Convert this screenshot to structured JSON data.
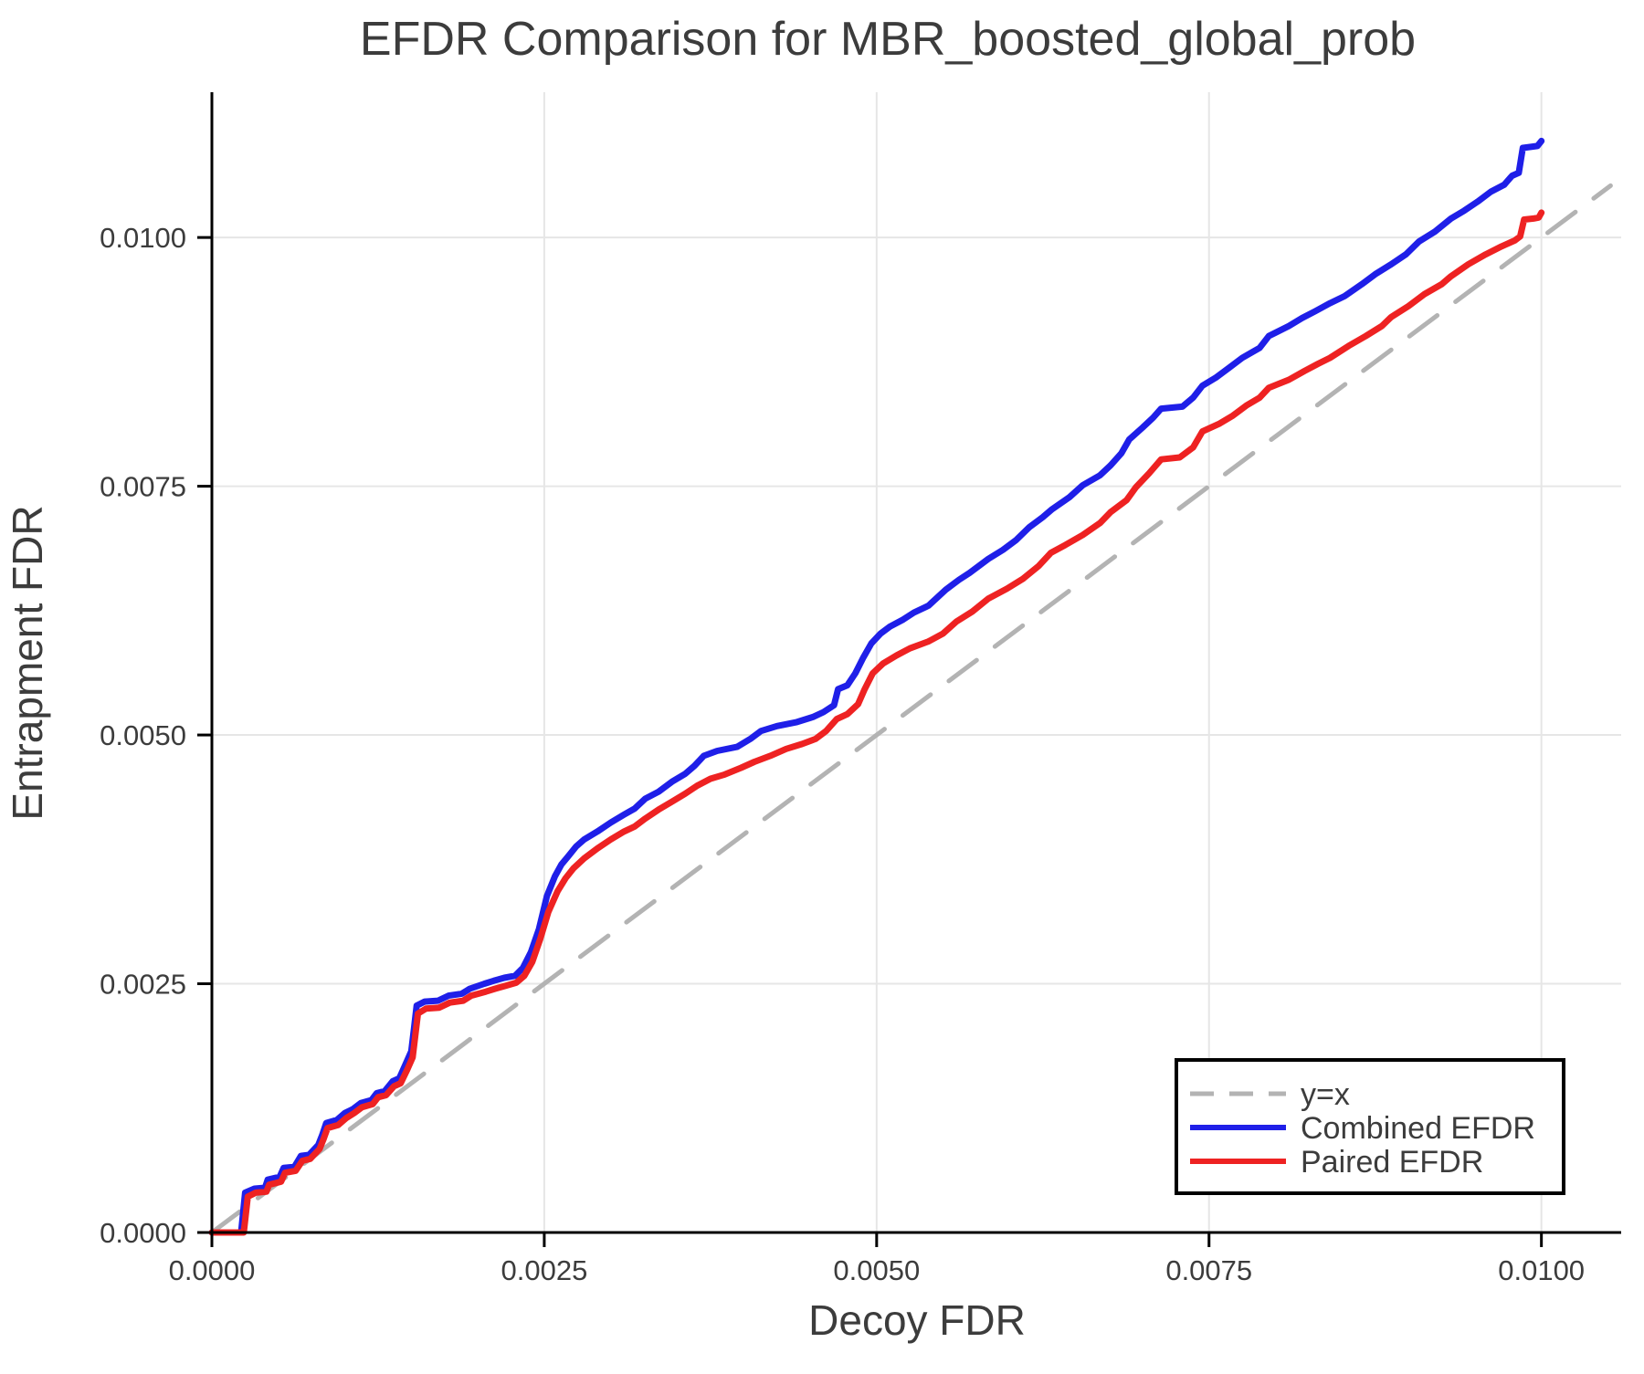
{
  "figure": {
    "background": "#ffffff",
    "text_color": "#3c3c3c",
    "grid_color": "#e6e6e6",
    "axis_color": "#000000",
    "legend_border_color": "#000000"
  },
  "legend": {
    "position": "lower right",
    "entries": [
      "y=x",
      "Combined EFDR",
      "Paired EFDR"
    ]
  },
  "chart_data": {
    "type": "line",
    "title": "EFDR Comparison for MBR_boosted_global_prob",
    "xlabel": "Decoy FDR",
    "ylabel": "Entrapment FDR",
    "xlim": [
      0,
      0.0106
    ],
    "ylim": [
      0,
      0.01146
    ],
    "grid": true,
    "x_ticks": [
      0.0,
      0.0025,
      0.005,
      0.0075,
      0.01
    ],
    "x_tick_labels": [
      "0.0000",
      "0.0025",
      "0.0050",
      "0.0075",
      "0.0100"
    ],
    "y_ticks": [
      0.0,
      0.0025,
      0.005,
      0.0075,
      0.01
    ],
    "y_tick_labels": [
      "0.0000",
      "0.0025",
      "0.0050",
      "0.0075",
      "0.0100"
    ],
    "legend_position": "lower right",
    "series": [
      {
        "name": "y=x",
        "style": "dashed",
        "color": "#b3b3b3",
        "points": [
          [
            0,
            0
          ],
          [
            0.01052,
            0.01052
          ]
        ]
      },
      {
        "name": "Combined EFDR",
        "style": "solid",
        "color": "#1f1fe8",
        "points": [
          [
            0,
            0
          ],
          [
            0.00022,
            0
          ],
          [
            0.00025,
            0.0004
          ],
          [
            0.00032,
            0.00044
          ],
          [
            0.0004,
            0.00045
          ],
          [
            0.00042,
            0.00053
          ],
          [
            0.00051,
            0.00056
          ],
          [
            0.00054,
            0.00065
          ],
          [
            0.00062,
            0.00066
          ],
          [
            0.00067,
            0.00077
          ],
          [
            0.00073,
            0.00078
          ],
          [
            0.0008,
            0.00088
          ],
          [
            0.00083,
            0.00098
          ],
          [
            0.00086,
            0.0011
          ],
          [
            0.00094,
            0.00113
          ],
          [
            0.001,
            0.0012
          ],
          [
            0.00106,
            0.00124
          ],
          [
            0.00112,
            0.0013
          ],
          [
            0.0012,
            0.00133
          ],
          [
            0.00124,
            0.0014
          ],
          [
            0.0013,
            0.00142
          ],
          [
            0.00136,
            0.00152
          ],
          [
            0.00141,
            0.00155
          ],
          [
            0.00146,
            0.0017
          ],
          [
            0.0015,
            0.00182
          ],
          [
            0.00152,
            0.00205
          ],
          [
            0.00154,
            0.00228
          ],
          [
            0.0016,
            0.00232
          ],
          [
            0.0017,
            0.00233
          ],
          [
            0.00178,
            0.00238
          ],
          [
            0.00188,
            0.0024
          ],
          [
            0.00194,
            0.00245
          ],
          [
            0.00205,
            0.0025
          ],
          [
            0.00212,
            0.00253
          ],
          [
            0.0022,
            0.00256
          ],
          [
            0.00228,
            0.00258
          ],
          [
            0.00234,
            0.00266
          ],
          [
            0.0024,
            0.00282
          ],
          [
            0.00246,
            0.00305
          ],
          [
            0.00252,
            0.00338
          ],
          [
            0.00258,
            0.00358
          ],
          [
            0.00263,
            0.0037
          ],
          [
            0.00268,
            0.00378
          ],
          [
            0.00274,
            0.00388
          ],
          [
            0.0028,
            0.00395
          ],
          [
            0.0029,
            0.00403
          ],
          [
            0.003,
            0.00412
          ],
          [
            0.0031,
            0.0042
          ],
          [
            0.00318,
            0.00426
          ],
          [
            0.00326,
            0.00436
          ],
          [
            0.00336,
            0.00443
          ],
          [
            0.00346,
            0.00453
          ],
          [
            0.00356,
            0.00461
          ],
          [
            0.00363,
            0.00469
          ],
          [
            0.0037,
            0.00479
          ],
          [
            0.0038,
            0.00484
          ],
          [
            0.00395,
            0.00488
          ],
          [
            0.00405,
            0.00496
          ],
          [
            0.00413,
            0.00504
          ],
          [
            0.00425,
            0.00509
          ],
          [
            0.0044,
            0.00513
          ],
          [
            0.00452,
            0.00518
          ],
          [
            0.0046,
            0.00523
          ],
          [
            0.00468,
            0.0053
          ],
          [
            0.00471,
            0.00546
          ],
          [
            0.00478,
            0.0055
          ],
          [
            0.00484,
            0.00562
          ],
          [
            0.0049,
            0.00578
          ],
          [
            0.00496,
            0.00592
          ],
          [
            0.00503,
            0.00602
          ],
          [
            0.0051,
            0.00609
          ],
          [
            0.0052,
            0.00616
          ],
          [
            0.00528,
            0.00623
          ],
          [
            0.00539,
            0.0063
          ],
          [
            0.00552,
            0.00646
          ],
          [
            0.00562,
            0.00656
          ],
          [
            0.0057,
            0.00663
          ],
          [
            0.00584,
            0.00677
          ],
          [
            0.00595,
            0.00686
          ],
          [
            0.00605,
            0.00696
          ],
          [
            0.00615,
            0.00709
          ],
          [
            0.00625,
            0.00719
          ],
          [
            0.00632,
            0.00727
          ],
          [
            0.00645,
            0.00739
          ],
          [
            0.00655,
            0.00751
          ],
          [
            0.00668,
            0.00761
          ],
          [
            0.00676,
            0.00771
          ],
          [
            0.00684,
            0.00783
          ],
          [
            0.0069,
            0.00797
          ],
          [
            0.007,
            0.00809
          ],
          [
            0.00708,
            0.00819
          ],
          [
            0.00714,
            0.00828
          ],
          [
            0.0073,
            0.0083
          ],
          [
            0.00738,
            0.00839
          ],
          [
            0.00745,
            0.00851
          ],
          [
            0.00755,
            0.00859
          ],
          [
            0.00765,
            0.00869
          ],
          [
            0.00775,
            0.00879
          ],
          [
            0.00788,
            0.00889
          ],
          [
            0.00795,
            0.00901
          ],
          [
            0.0081,
            0.00911
          ],
          [
            0.0082,
            0.00919
          ],
          [
            0.0083,
            0.00926
          ],
          [
            0.00841,
            0.00934
          ],
          [
            0.00852,
            0.00941
          ],
          [
            0.00865,
            0.00953
          ],
          [
            0.00875,
            0.00963
          ],
          [
            0.00887,
            0.00973
          ],
          [
            0.00898,
            0.00983
          ],
          [
            0.00908,
            0.00996
          ],
          [
            0.0092,
            0.01006
          ],
          [
            0.00932,
            0.01019
          ],
          [
            0.00942,
            0.01027
          ],
          [
            0.00952,
            0.01036
          ],
          [
            0.00962,
            0.01046
          ],
          [
            0.00972,
            0.01053
          ],
          [
            0.00978,
            0.01062
          ],
          [
            0.00983,
            0.01065
          ],
          [
            0.00986,
            0.0109
          ],
          [
            0.00992,
            0.01091
          ],
          [
            0.00997,
            0.01092
          ],
          [
            0.01,
            0.01097
          ]
        ]
      },
      {
        "name": "Paired EFDR",
        "style": "solid",
        "color": "#ee2222",
        "points": [
          [
            0,
            0
          ],
          [
            0.00024,
            0
          ],
          [
            0.00027,
            0.00036
          ],
          [
            0.00033,
            0.0004
          ],
          [
            0.00041,
            0.00041
          ],
          [
            0.00043,
            0.00048
          ],
          [
            0.00052,
            0.00051
          ],
          [
            0.00055,
            0.0006
          ],
          [
            0.00063,
            0.00062
          ],
          [
            0.00068,
            0.00072
          ],
          [
            0.00074,
            0.00074
          ],
          [
            0.00081,
            0.00084
          ],
          [
            0.00084,
            0.00094
          ],
          [
            0.00087,
            0.00105
          ],
          [
            0.00095,
            0.00108
          ],
          [
            0.00101,
            0.00115
          ],
          [
            0.00107,
            0.0012
          ],
          [
            0.00113,
            0.00126
          ],
          [
            0.00121,
            0.00129
          ],
          [
            0.00125,
            0.00136
          ],
          [
            0.00131,
            0.00138
          ],
          [
            0.00137,
            0.00147
          ],
          [
            0.00142,
            0.0015
          ],
          [
            0.00147,
            0.00164
          ],
          [
            0.00151,
            0.00176
          ],
          [
            0.00153,
            0.00198
          ],
          [
            0.00155,
            0.0022
          ],
          [
            0.00161,
            0.00225
          ],
          [
            0.00171,
            0.00226
          ],
          [
            0.00179,
            0.00231
          ],
          [
            0.00189,
            0.00233
          ],
          [
            0.00195,
            0.00238
          ],
          [
            0.00206,
            0.00242
          ],
          [
            0.00213,
            0.00245
          ],
          [
            0.00221,
            0.00248
          ],
          [
            0.00229,
            0.00251
          ],
          [
            0.00235,
            0.00258
          ],
          [
            0.00241,
            0.00272
          ],
          [
            0.00247,
            0.00295
          ],
          [
            0.00253,
            0.00322
          ],
          [
            0.0026,
            0.00343
          ],
          [
            0.00266,
            0.00356
          ],
          [
            0.00272,
            0.00366
          ],
          [
            0.0028,
            0.00376
          ],
          [
            0.0029,
            0.00386
          ],
          [
            0.003,
            0.00395
          ],
          [
            0.0031,
            0.00403
          ],
          [
            0.00318,
            0.00408
          ],
          [
            0.00326,
            0.00416
          ],
          [
            0.00336,
            0.00425
          ],
          [
            0.00346,
            0.00433
          ],
          [
            0.00356,
            0.00441
          ],
          [
            0.00365,
            0.00449
          ],
          [
            0.00375,
            0.00456
          ],
          [
            0.00385,
            0.0046
          ],
          [
            0.00398,
            0.00467
          ],
          [
            0.00408,
            0.00473
          ],
          [
            0.0042,
            0.00479
          ],
          [
            0.00432,
            0.00486
          ],
          [
            0.00444,
            0.00491
          ],
          [
            0.00454,
            0.00496
          ],
          [
            0.00462,
            0.00504
          ],
          [
            0.0047,
            0.00516
          ],
          [
            0.00478,
            0.00521
          ],
          [
            0.00486,
            0.00531
          ],
          [
            0.00491,
            0.00546
          ],
          [
            0.00497,
            0.00562
          ],
          [
            0.00505,
            0.00572
          ],
          [
            0.00515,
            0.0058
          ],
          [
            0.00525,
            0.00587
          ],
          [
            0.00539,
            0.00594
          ],
          [
            0.0055,
            0.00602
          ],
          [
            0.0056,
            0.00614
          ],
          [
            0.00572,
            0.00624
          ],
          [
            0.00584,
            0.00637
          ],
          [
            0.00598,
            0.00647
          ],
          [
            0.0061,
            0.00657
          ],
          [
            0.00622,
            0.0067
          ],
          [
            0.00631,
            0.00683
          ],
          [
            0.00642,
            0.00691
          ],
          [
            0.00655,
            0.00701
          ],
          [
            0.00668,
            0.00713
          ],
          [
            0.00676,
            0.00724
          ],
          [
            0.00688,
            0.00736
          ],
          [
            0.00695,
            0.00749
          ],
          [
            0.00705,
            0.00763
          ],
          [
            0.00714,
            0.00777
          ],
          [
            0.00728,
            0.00779
          ],
          [
            0.00738,
            0.00789
          ],
          [
            0.00745,
            0.00805
          ],
          [
            0.00758,
            0.00813
          ],
          [
            0.00768,
            0.00821
          ],
          [
            0.00778,
            0.00831
          ],
          [
            0.00788,
            0.00839
          ],
          [
            0.00795,
            0.00849
          ],
          [
            0.0081,
            0.00857
          ],
          [
            0.00822,
            0.00866
          ],
          [
            0.00832,
            0.00873
          ],
          [
            0.00841,
            0.00879
          ],
          [
            0.00855,
            0.00891
          ],
          [
            0.00868,
            0.00901
          ],
          [
            0.0088,
            0.00911
          ],
          [
            0.00887,
            0.0092
          ],
          [
            0.009,
            0.00931
          ],
          [
            0.00912,
            0.00943
          ],
          [
            0.00925,
            0.00953
          ],
          [
            0.00932,
            0.00961
          ],
          [
            0.00945,
            0.00973
          ],
          [
            0.00958,
            0.00983
          ],
          [
            0.0097,
            0.00991
          ],
          [
            0.0098,
            0.00997
          ],
          [
            0.00984,
            0.01001
          ],
          [
            0.00987,
            0.01018
          ],
          [
            0.00994,
            0.01019
          ],
          [
            0.00998,
            0.0102
          ],
          [
            0.01,
            0.01025
          ]
        ]
      }
    ]
  }
}
